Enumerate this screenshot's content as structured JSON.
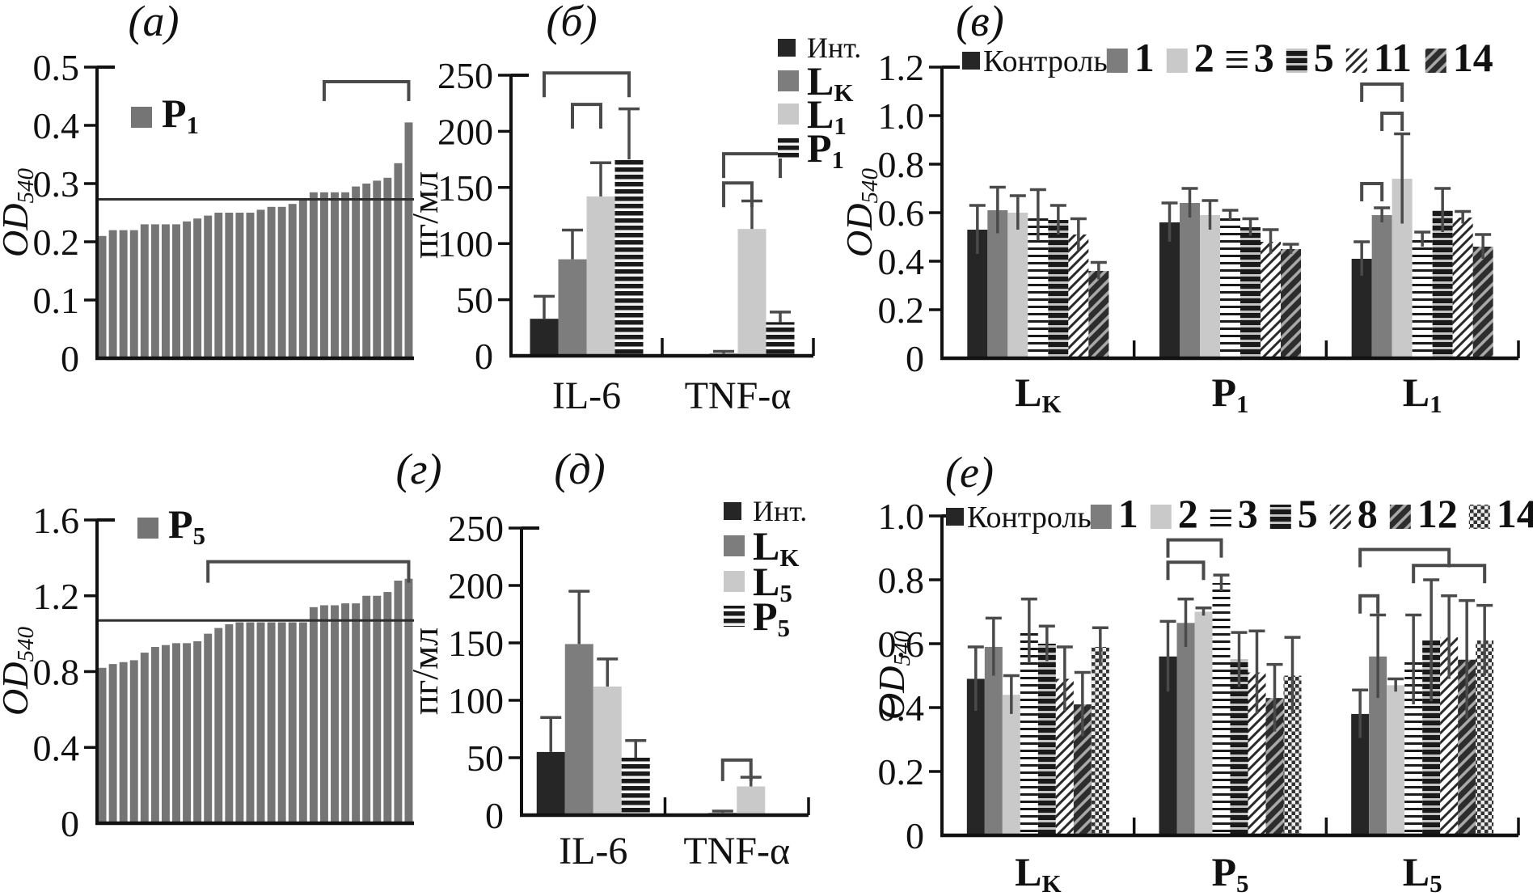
{
  "colors": {
    "bar_gray": "#757575",
    "black": "#262626",
    "dark_gray": "#7d7d7d",
    "light_gray": "#c9c9c9",
    "stripe_dark": "#1a1a1a",
    "stripe_bg": "#f3f3f3",
    "dense_bg": "#c4c4c4",
    "diag_bg": "#a8a8a8",
    "checker_bg": "#ededed",
    "checker_dark": "#333333",
    "axis": "#111111",
    "bracket": "#4a4a4a",
    "error_bar": "#4a4a4a",
    "threshold": "#2f2f2f",
    "text": "#111111"
  },
  "chart_data": [
    {
      "panel": "a",
      "letter": "(а)",
      "type": "bar",
      "subtype": "histogram",
      "ylabel": {
        "main": "OD",
        "sub": "540",
        "italic": true
      },
      "ylim": [
        0,
        0.5
      ],
      "yticks": [
        {
          "v": 0,
          "t": "0"
        },
        {
          "v": 0.1,
          "t": "0.1"
        },
        {
          "v": 0.2,
          "t": "0.2"
        },
        {
          "v": 0.3,
          "t": "0.3"
        },
        {
          "v": 0.4,
          "t": "0.4"
        },
        {
          "v": 0.5,
          "t": "0.5"
        }
      ],
      "legend": {
        "label": {
          "main": "P",
          "sub": "1"
        },
        "pattern": "gray"
      },
      "bar_pattern": "gray",
      "threshold": 0.273,
      "values": [
        0.21,
        0.22,
        0.22,
        0.22,
        0.23,
        0.23,
        0.23,
        0.23,
        0.235,
        0.24,
        0.245,
        0.25,
        0.25,
        0.25,
        0.25,
        0.255,
        0.26,
        0.26,
        0.265,
        0.275,
        0.285,
        0.285,
        0.285,
        0.285,
        0.295,
        0.3,
        0.305,
        0.31,
        0.335,
        0.405
      ],
      "brackets": [
        {
          "from": 21,
          "to": 29,
          "y": 0.475
        }
      ]
    },
    {
      "panel": "b",
      "letter": "(б)",
      "type": "bar",
      "subtype": "grouped",
      "ylabel": {
        "main": "пг/мл"
      },
      "ylim": [
        0,
        250
      ],
      "yticks": [
        {
          "v": 0,
          "t": "0"
        },
        {
          "v": 50,
          "t": "50"
        },
        {
          "v": 100,
          "t": "100"
        },
        {
          "v": 150,
          "t": "150"
        },
        {
          "v": 200,
          "t": "200"
        },
        {
          "v": 250,
          "t": "250"
        }
      ],
      "categories": [
        {
          "main": "IL-6"
        },
        {
          "main": "TNF-α"
        }
      ],
      "series": [
        {
          "label": {
            "main": "Инт."
          },
          "pattern": "black"
        },
        {
          "label": {
            "main": "L",
            "sub": "K"
          },
          "pattern": "darkgray"
        },
        {
          "label": {
            "main": "L",
            "sub": "1"
          },
          "pattern": "lightgray"
        },
        {
          "label": {
            "main": "P",
            "sub": "1"
          },
          "pattern": "hstripe"
        }
      ],
      "values": [
        [
          33,
          86,
          142,
          175
        ],
        [
          0.5,
          2,
          113,
          30
        ]
      ],
      "errors": [
        [
          20,
          26,
          30,
          45
        ],
        [
          0,
          2,
          25,
          9
        ]
      ],
      "brackets": [
        {
          "cat": 0,
          "from": 0,
          "to": 3,
          "y": 252
        },
        {
          "cat": 0,
          "from": 1,
          "to": 2,
          "y": 224
        },
        {
          "cat": 1,
          "from": 1,
          "to": 3,
          "y": 180
        },
        {
          "cat": 1,
          "from": 1,
          "to": 2,
          "y": 154
        }
      ],
      "legend_layout": "column"
    },
    {
      "panel": "v",
      "letter": "(в)",
      "type": "bar",
      "subtype": "grouped",
      "ylabel": {
        "main": "OD",
        "sub": "540",
        "italic": true
      },
      "ylim": [
        0,
        1.2
      ],
      "yticks": [
        {
          "v": 0,
          "t": "0"
        },
        {
          "v": 0.2,
          "t": "0.2"
        },
        {
          "v": 0.4,
          "t": "0.4"
        },
        {
          "v": 0.6,
          "t": "0.6"
        },
        {
          "v": 0.8,
          "t": "0.8"
        },
        {
          "v": 1.0,
          "t": "1.0"
        },
        {
          "v": 1.2,
          "t": "1.2"
        }
      ],
      "categories": [
        {
          "main": "L",
          "sub": "K"
        },
        {
          "main": "P",
          "sub": "1"
        },
        {
          "main": "L",
          "sub": "1"
        }
      ],
      "series": [
        {
          "label": {
            "main": "Контроль"
          },
          "pattern": "black"
        },
        {
          "label": {
            "main": "1"
          },
          "pattern": "darkgray"
        },
        {
          "label": {
            "main": "2"
          },
          "pattern": "lightgray"
        },
        {
          "label": {
            "main": "3"
          },
          "pattern": "hstripe-fine"
        },
        {
          "label": {
            "main": "5"
          },
          "pattern": "hstripe-dense"
        },
        {
          "label": {
            "main": "11"
          },
          "pattern": "diag-fine"
        },
        {
          "label": {
            "main": "14"
          },
          "pattern": "diag-bold"
        }
      ],
      "values": [
        [
          0.53,
          0.61,
          0.6,
          0.59,
          0.57,
          0.51,
          0.36
        ],
        [
          0.56,
          0.64,
          0.59,
          0.59,
          0.54,
          0.48,
          0.45
        ],
        [
          0.41,
          0.59,
          0.74,
          0.49,
          0.61,
          0.58,
          0.46
        ]
      ],
      "errors": [
        [
          0.1,
          0.095,
          0.07,
          0.105,
          0.06,
          0.065,
          0.035
        ],
        [
          0.08,
          0.06,
          0.06,
          0.02,
          0.035,
          0.05,
          0.02
        ],
        [
          0.07,
          0.03,
          0.185,
          0.03,
          0.09,
          0.025,
          0.05
        ]
      ],
      "brackets": [
        {
          "cat": 2,
          "from": 0,
          "to": 1,
          "y": 0.72
        },
        {
          "cat": 2,
          "from": 1,
          "to": 2,
          "y": 1.01
        },
        {
          "cat": 2,
          "from": 0,
          "to": 2,
          "y": 1.13
        }
      ],
      "legend_layout": "row"
    },
    {
      "panel": "g",
      "letter": "(г)",
      "type": "bar",
      "subtype": "histogram",
      "ylabel": {
        "main": "OD",
        "sub": "540",
        "italic": true
      },
      "ylim": [
        0,
        1.6
      ],
      "yticks": [
        {
          "v": 0,
          "t": "0"
        },
        {
          "v": 0.4,
          "t": "0.4"
        },
        {
          "v": 0.8,
          "t": "0.8"
        },
        {
          "v": 1.2,
          "t": "1.2"
        },
        {
          "v": 1.6,
          "t": "1.6"
        }
      ],
      "legend": {
        "label": {
          "main": "P",
          "sub": "5"
        },
        "pattern": "gray"
      },
      "bar_pattern": "gray",
      "threshold": 1.07,
      "values": [
        0.82,
        0.84,
        0.85,
        0.86,
        0.9,
        0.93,
        0.94,
        0.95,
        0.95,
        0.96,
        1.0,
        1.03,
        1.05,
        1.06,
        1.06,
        1.06,
        1.06,
        1.06,
        1.06,
        1.06,
        1.14,
        1.15,
        1.15,
        1.16,
        1.16,
        1.2,
        1.2,
        1.22,
        1.28,
        1.29
      ],
      "brackets": [
        {
          "from": 10,
          "to": 29,
          "y": 1.38
        }
      ]
    },
    {
      "panel": "d",
      "letter": "(д)",
      "type": "bar",
      "subtype": "grouped",
      "ylabel": {
        "main": "пг/мл"
      },
      "ylim": [
        0,
        250
      ],
      "yticks": [
        {
          "v": 0,
          "t": "0"
        },
        {
          "v": 50,
          "t": "50"
        },
        {
          "v": 100,
          "t": "100"
        },
        {
          "v": 150,
          "t": "150"
        },
        {
          "v": 200,
          "t": "200"
        },
        {
          "v": 250,
          "t": "250"
        }
      ],
      "categories": [
        {
          "main": "IL-6"
        },
        {
          "main": "TNF-α"
        }
      ],
      "series": [
        {
          "label": {
            "main": "Инт."
          },
          "pattern": "black"
        },
        {
          "label": {
            "main": "L",
            "sub": "K"
          },
          "pattern": "darkgray"
        },
        {
          "label": {
            "main": "L",
            "sub": "5"
          },
          "pattern": "lightgray"
        },
        {
          "label": {
            "main": "P",
            "sub": "5"
          },
          "pattern": "hstripe"
        }
      ],
      "values": [
        [
          55,
          149,
          112,
          50
        ],
        [
          0.5,
          2,
          25,
          0.5
        ]
      ],
      "errors": [
        [
          30,
          46,
          24,
          15
        ],
        [
          0,
          1.5,
          8,
          0
        ]
      ],
      "brackets": [
        {
          "cat": 1,
          "from": 1,
          "to": 2,
          "y": 48
        }
      ],
      "legend_layout": "column"
    },
    {
      "panel": "e",
      "letter": "(е)",
      "type": "bar",
      "subtype": "grouped",
      "ylabel": {
        "main": "OD",
        "sub": "540",
        "italic": true
      },
      "ylim": [
        0,
        1.0
      ],
      "yticks": [
        {
          "v": 0,
          "t": "0"
        },
        {
          "v": 0.2,
          "t": "0.2"
        },
        {
          "v": 0.4,
          "t": "0.4"
        },
        {
          "v": 0.6,
          "t": "0.6"
        },
        {
          "v": 0.8,
          "t": "0.8"
        },
        {
          "v": 1.0,
          "t": "1.0"
        }
      ],
      "categories": [
        {
          "main": "L",
          "sub": "K"
        },
        {
          "main": "P",
          "sub": "5"
        },
        {
          "main": "L",
          "sub": "5"
        }
      ],
      "series": [
        {
          "label": {
            "main": "Контроль"
          },
          "pattern": "black"
        },
        {
          "label": {
            "main": "1"
          },
          "pattern": "darkgray"
        },
        {
          "label": {
            "main": "2"
          },
          "pattern": "lightgray"
        },
        {
          "label": {
            "main": "3"
          },
          "pattern": "hstripe-fine"
        },
        {
          "label": {
            "main": "5"
          },
          "pattern": "hstripe-dense"
        },
        {
          "label": {
            "main": "8"
          },
          "pattern": "diag-fine"
        },
        {
          "label": {
            "main": "12"
          },
          "pattern": "diag-bold"
        },
        {
          "label": {
            "main": "14"
          },
          "pattern": "checker"
        }
      ],
      "values": [
        [
          0.49,
          0.59,
          0.44,
          0.64,
          0.6,
          0.49,
          0.41,
          0.59
        ],
        [
          0.56,
          0.665,
          0.7,
          0.79,
          0.55,
          0.51,
          0.43,
          0.5
        ],
        [
          0.38,
          0.56,
          0.47,
          0.55,
          0.61,
          0.62,
          0.55,
          0.61
        ]
      ],
      "errors": [
        [
          0.1,
          0.09,
          0.06,
          0.1,
          0.055,
          0.1,
          0.1,
          0.06
        ],
        [
          0.11,
          0.075,
          0.012,
          0.025,
          0.085,
          0.13,
          0.105,
          0.12
        ],
        [
          0.075,
          0.13,
          0.02,
          0.14,
          0.19,
          0.13,
          0.185,
          0.11
        ]
      ],
      "brackets": [
        {
          "cat": 1,
          "from": 0,
          "to": 2,
          "y": 0.855
        },
        {
          "cat": 1,
          "from": 0,
          "to": 3,
          "y": 0.925
        },
        {
          "cat": 2,
          "from": 0,
          "to": 1,
          "y": 0.75
        },
        {
          "cat": 2,
          "from": 0,
          "to": 5,
          "y": 0.895
        },
        {
          "cat": 2,
          "from": 3,
          "to": 7,
          "y": 0.845
        }
      ],
      "legend_layout": "row"
    }
  ]
}
